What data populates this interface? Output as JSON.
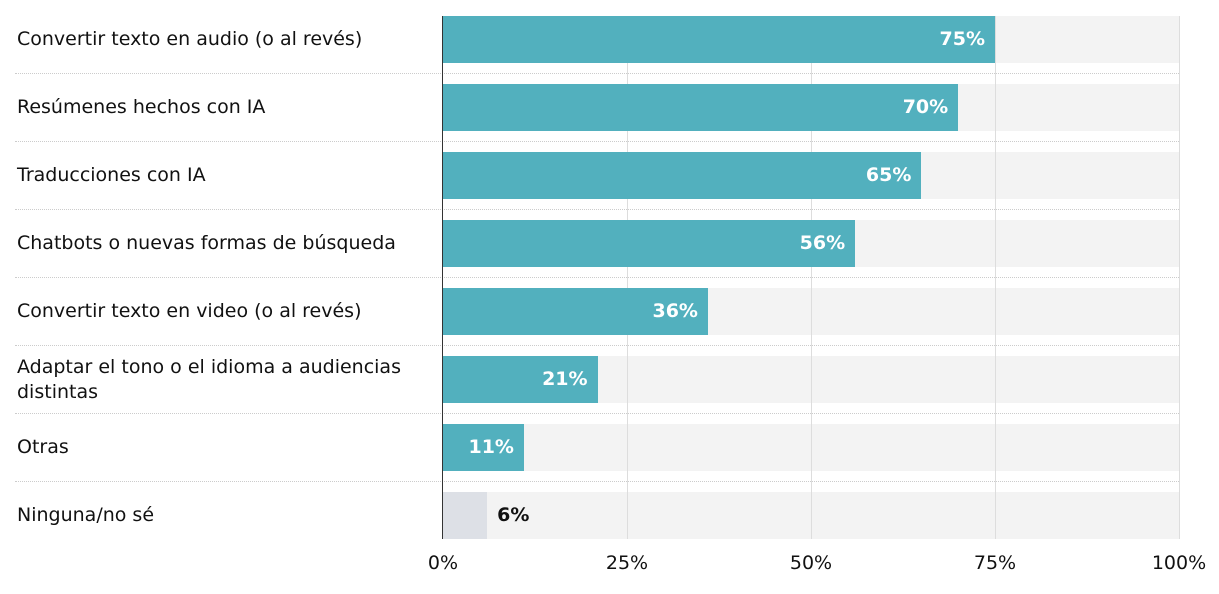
{
  "chart_data": {
    "type": "bar",
    "orientation": "horizontal",
    "categories": [
      "Convertir texto en audio (o al revés)",
      "Resúmenes hechos con IA",
      "Traducciones con IA",
      "Chatbots o nuevas formas de búsqueda",
      "Convertir texto en video (o al revés)",
      "Adaptar el tono o el idioma a audiencias distintas",
      "Otras",
      "Ninguna/no sé"
    ],
    "values": [
      75,
      70,
      65,
      56,
      36,
      21,
      11,
      6
    ],
    "value_labels": [
      "75%",
      "70%",
      "65%",
      "56%",
      "36%",
      "21%",
      "11%",
      "6%"
    ],
    "colors": [
      "#52b0be",
      "#52b0be",
      "#52b0be",
      "#52b0be",
      "#52b0be",
      "#52b0be",
      "#52b0be",
      "#dde0e6"
    ],
    "xlim": [
      0,
      100
    ],
    "xticks": [
      {
        "value": 0,
        "label": "0%"
      },
      {
        "value": 25,
        "label": "25%"
      },
      {
        "value": 50,
        "label": "50%"
      },
      {
        "value": 75,
        "label": "75%"
      },
      {
        "value": 100,
        "label": "100%"
      }
    ],
    "grid": true
  }
}
